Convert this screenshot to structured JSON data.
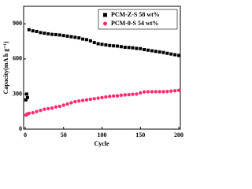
{
  "chart_data": {
    "type": "scatter",
    "x_label": "Cycle",
    "y_label": "Capacity(mA h g⁻¹)",
    "x": [
      1,
      2,
      3,
      5,
      10,
      15,
      20,
      25,
      30,
      35,
      40,
      45,
      50,
      55,
      60,
      65,
      70,
      75,
      80,
      85,
      90,
      95,
      100,
      105,
      110,
      115,
      120,
      125,
      130,
      135,
      140,
      145,
      150,
      155,
      160,
      165,
      170,
      175,
      180,
      185,
      190,
      195,
      200
    ],
    "series": [
      {
        "name": "PCM-Z-S 58 wt%",
        "color": "#000000",
        "marker": "square",
        "values": [
          250,
          300,
          270,
          850,
          840,
          835,
          825,
          820,
          815,
          810,
          808,
          805,
          800,
          795,
          790,
          785,
          780,
          770,
          765,
          755,
          740,
          730,
          725,
          720,
          715,
          712,
          710,
          705,
          700,
          698,
          695,
          690,
          688,
          680,
          675,
          670,
          665,
          660,
          655,
          648,
          642,
          636,
          630
        ]
      },
      {
        "name": "PCM-0-S 54 wt%",
        "color": "#ff2d6e",
        "marker": "circle",
        "values": [
          120,
          125,
          130,
          135,
          140,
          150,
          160,
          170,
          175,
          180,
          190,
          195,
          205,
          215,
          225,
          235,
          240,
          245,
          250,
          255,
          260,
          265,
          270,
          275,
          280,
          283,
          285,
          290,
          293,
          295,
          298,
          300,
          310,
          318,
          320,
          320,
          320,
          320,
          320,
          322,
          325,
          328,
          332
        ]
      }
    ],
    "xlim": [
      -2,
      202
    ],
    "ylim": [
      0,
      1050
    ],
    "xticks": [
      0,
      50,
      100,
      150,
      200
    ],
    "yticks": [
      0,
      300,
      600,
      900
    ],
    "legend": "upper right",
    "grid": false
  }
}
